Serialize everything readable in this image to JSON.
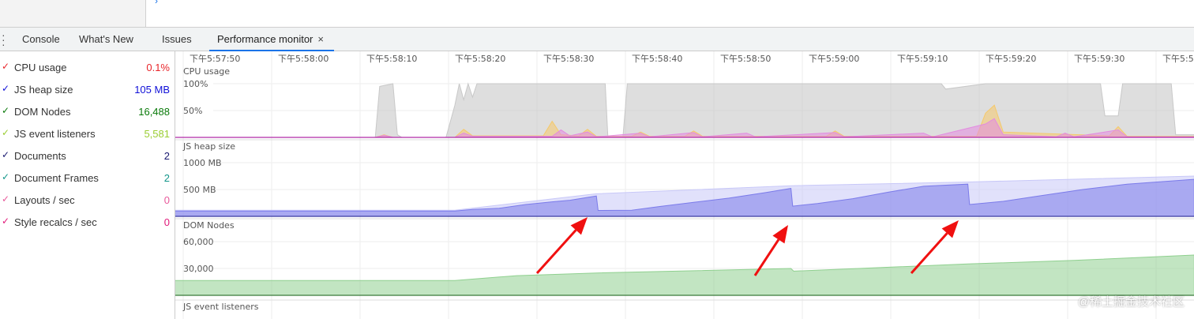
{
  "tabs": [
    {
      "label": "Console"
    },
    {
      "label": "What's New"
    },
    {
      "label": "Issues"
    },
    {
      "label": "Performance monitor",
      "active": true,
      "closable": true
    }
  ],
  "close_icon": "×",
  "metrics": [
    {
      "label": "CPU usage",
      "value": "0.1%",
      "color": "#e8252a",
      "checked": true
    },
    {
      "label": "JS heap size",
      "value": "105 MB",
      "color": "#1010d8",
      "checked": true
    },
    {
      "label": "DOM Nodes",
      "value": "16,488",
      "color": "#0a7a0a",
      "checked": true
    },
    {
      "label": "JS event listeners",
      "value": "5,581",
      "color": "#9acd32",
      "checked": true
    },
    {
      "label": "Documents",
      "value": "2",
      "color": "#191970",
      "checked": true
    },
    {
      "label": "Document Frames",
      "value": "2",
      "color": "#13968a",
      "checked": true
    },
    {
      "label": "Layouts / sec",
      "value": "0",
      "color": "#e8589a",
      "checked": true
    },
    {
      "label": "Style recalcs / sec",
      "value": "0",
      "color": "#e0197a",
      "checked": true
    }
  ],
  "time_ticks": [
    "下午5:57:50",
    "下午5:58:00",
    "下午5:58:10",
    "下午5:58:20",
    "下午5:58:30",
    "下午5:58:40",
    "下午5:58:50",
    "下午5:59:00",
    "下午5:59:10",
    "下午5:59:20",
    "下午5:59:30",
    "下午5:5"
  ],
  "chart_data": [
    {
      "type": "area",
      "title": "CPU usage",
      "yticks": [
        "100%",
        "50%"
      ],
      "ylim": [
        0,
        100
      ],
      "series": [
        {
          "color": "#c8c8c8",
          "points": [
            [
              "5:57:48",
              0
            ],
            [
              "5:58:11",
              0
            ],
            [
              "5:58:11.5",
              95
            ],
            [
              "5:58:13",
              100
            ],
            [
              "5:58:13.5",
              5
            ],
            [
              "5:58:14",
              0
            ],
            [
              "5:58:19",
              0
            ],
            [
              "5:58:20",
              60
            ],
            [
              "5:58:20.5",
              100
            ],
            [
              "5:58:21",
              70
            ],
            [
              "5:58:21.5",
              100
            ],
            [
              "5:58:22",
              75
            ],
            [
              "5:58:22.5",
              100
            ],
            [
              "5:58:37",
              100
            ],
            [
              "5:58:37.3",
              0
            ],
            [
              "5:58:39",
              0
            ],
            [
              "5:58:39.5",
              100
            ],
            [
              "5:59:15",
              100
            ],
            [
              "5:59:15.5",
              90
            ],
            [
              "5:59:20",
              100
            ],
            [
              "5:59:33",
              100
            ],
            [
              "5:59:33.5",
              40
            ],
            [
              "5:59:35",
              40
            ],
            [
              "5:59:35.5",
              100
            ],
            [
              "5:59:41",
              100
            ],
            [
              "5:59:41.5",
              5
            ],
            [
              "5:59:43.6",
              5
            ]
          ]
        },
        {
          "color": "#f5c96b",
          "points": [
            [
              "5:57:48",
              0
            ],
            [
              "5:58:11",
              0
            ],
            [
              "5:58:12",
              5
            ],
            [
              "5:58:13",
              0
            ],
            [
              "5:58:20",
              0
            ],
            [
              "5:58:21",
              15
            ],
            [
              "5:58:22",
              3
            ],
            [
              "5:58:30",
              3
            ],
            [
              "5:58:31",
              30
            ],
            [
              "5:58:32",
              5
            ],
            [
              "5:58:34",
              3
            ],
            [
              "5:58:35",
              15
            ],
            [
              "5:58:36",
              2
            ],
            [
              "5:58:40",
              2
            ],
            [
              "5:58:41",
              10
            ],
            [
              "5:58:42",
              2
            ],
            [
              "5:58:46",
              2
            ],
            [
              "5:58:47",
              12
            ],
            [
              "5:58:48",
              2
            ],
            [
              "5:59:02",
              2
            ],
            [
              "5:59:03",
              12
            ],
            [
              "5:59:04",
              2
            ],
            [
              "5:59:19",
              2
            ],
            [
              "5:59:20",
              45
            ],
            [
              "5:59:21",
              60
            ],
            [
              "5:59:22",
              10
            ],
            [
              "5:59:34",
              3
            ],
            [
              "5:59:35",
              20
            ],
            [
              "5:59:36",
              2
            ],
            [
              "5:59:43.6",
              2
            ]
          ]
        },
        {
          "color": "#e38be0",
          "points": [
            [
              "5:57:48",
              0
            ],
            [
              "5:58:11",
              0
            ],
            [
              "5:58:12",
              4
            ],
            [
              "5:58:13",
              0
            ],
            [
              "5:58:20",
              0
            ],
            [
              "5:58:21",
              8
            ],
            [
              "5:58:22",
              2
            ],
            [
              "5:58:31",
              2
            ],
            [
              "5:58:32",
              14
            ],
            [
              "5:58:33",
              3
            ],
            [
              "5:58:35",
              10
            ],
            [
              "5:58:36",
              1
            ],
            [
              "5:58:41",
              8
            ],
            [
              "5:58:42",
              1
            ],
            [
              "5:58:47",
              9
            ],
            [
              "5:58:48",
              1
            ],
            [
              "5:58:53",
              8
            ],
            [
              "5:58:54",
              1
            ],
            [
              "5:59:03",
              9
            ],
            [
              "5:59:04",
              1
            ],
            [
              "5:59:13",
              8
            ],
            [
              "5:59:14",
              1
            ],
            [
              "5:59:20",
              25
            ],
            [
              "5:59:21",
              35
            ],
            [
              "5:59:22",
              5
            ],
            [
              "5:59:28",
              1
            ],
            [
              "5:59:29",
              8
            ],
            [
              "5:59:30",
              1
            ],
            [
              "5:59:35",
              14
            ],
            [
              "5:59:36",
              1
            ],
            [
              "5:59:43.6",
              1
            ]
          ]
        }
      ]
    },
    {
      "type": "area",
      "title": "JS heap size",
      "yticks": [
        "1000 MB",
        "500 MB"
      ],
      "ylim": [
        0,
        1000
      ],
      "series": [
        {
          "color": "#c8c8f8",
          "points": [
            [
              "5:57:48",
              115
            ],
            [
              "5:58:20",
              115
            ],
            [
              "5:58:36",
              420
            ],
            [
              "5:58:58",
              570
            ],
            [
              "5:59:18",
              640
            ],
            [
              "5:59:43.6",
              750
            ]
          ]
        },
        {
          "color": "#7b7bea",
          "points": [
            [
              "5:57:48",
              100
            ],
            [
              "5:58:20",
              100
            ],
            [
              "5:58:22",
              130
            ],
            [
              "5:58:25",
              150
            ],
            [
              "5:58:28",
              220
            ],
            [
              "5:58:31",
              270
            ],
            [
              "5:58:33",
              300
            ],
            [
              "5:58:36",
              380
            ],
            [
              "5:58:36.2",
              110
            ],
            [
              "5:58:40",
              115
            ],
            [
              "5:58:43",
              180
            ],
            [
              "5:58:47",
              260
            ],
            [
              "5:58:51",
              340
            ],
            [
              "5:58:55",
              440
            ],
            [
              "5:58:58",
              520
            ],
            [
              "5:58:58.2",
              190
            ],
            [
              "5:59:01",
              240
            ],
            [
              "5:59:05",
              330
            ],
            [
              "5:59:09",
              450
            ],
            [
              "5:59:13",
              560
            ],
            [
              "5:59:18",
              600
            ],
            [
              "5:59:18.2",
              220
            ],
            [
              "5:59:22",
              280
            ],
            [
              "5:59:26",
              380
            ],
            [
              "5:59:31",
              500
            ],
            [
              "5:59:36",
              600
            ],
            [
              "5:59:43.6",
              690
            ]
          ]
        }
      ]
    },
    {
      "type": "area",
      "title": "DOM Nodes",
      "yticks": [
        "60,000",
        "30,000"
      ],
      "ylim": [
        0,
        60000
      ],
      "series": [
        {
          "color": "#8fd08f",
          "points": [
            [
              "5:57:48",
              16500
            ],
            [
              "5:58:20",
              16500
            ],
            [
              "5:58:27",
              22000
            ],
            [
              "5:58:36",
              25000
            ],
            [
              "5:58:58",
              30000
            ],
            [
              "5:58:58.3",
              27000
            ],
            [
              "5:59:18",
              35000
            ],
            [
              "5:59:30",
              39000
            ],
            [
              "5:59:43.6",
              45000
            ]
          ]
        }
      ]
    },
    {
      "type": "area",
      "title": "JS event listeners",
      "series": []
    }
  ],
  "watermark": "@稀土掘金技术社区"
}
